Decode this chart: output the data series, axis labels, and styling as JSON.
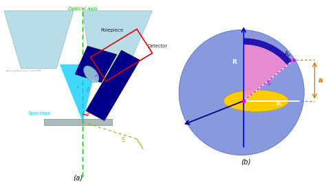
{
  "bg_color": "#ffffff",
  "panel_a_label": "(a)",
  "panel_b_label": "(b)",
  "optical_axis_color": "#00bb00",
  "polepiece_color": "#b8dde8",
  "polepiece_edge": "#99bbcc",
  "specimen_color": "#aabbbb",
  "detector_box_color": "#dd0000",
  "beam_cone_color": "#00ccff",
  "eds_body_color": "#00008b",
  "crystal_color": "#99ccdd",
  "gold_line_color": "#aaaa00",
  "specimen_label_color": "#00ccee",
  "alpha_label_color": "#ee2222",
  "A_label_color": "#ee00ee",
  "watermark": "www.globalsino.com/EM",
  "sphere_color": "#8899dd",
  "ellipse_color": "#ffcc00",
  "pink_region_color": "#ff88cc",
  "dark_blue_region": "#0000aa",
  "S_label_color": "#dd00dd",
  "R_label_color": "#ffffff",
  "a_label_color": "#dd7700",
  "As_label_color": "#000055",
  "arrow_blue": "#0000cc"
}
